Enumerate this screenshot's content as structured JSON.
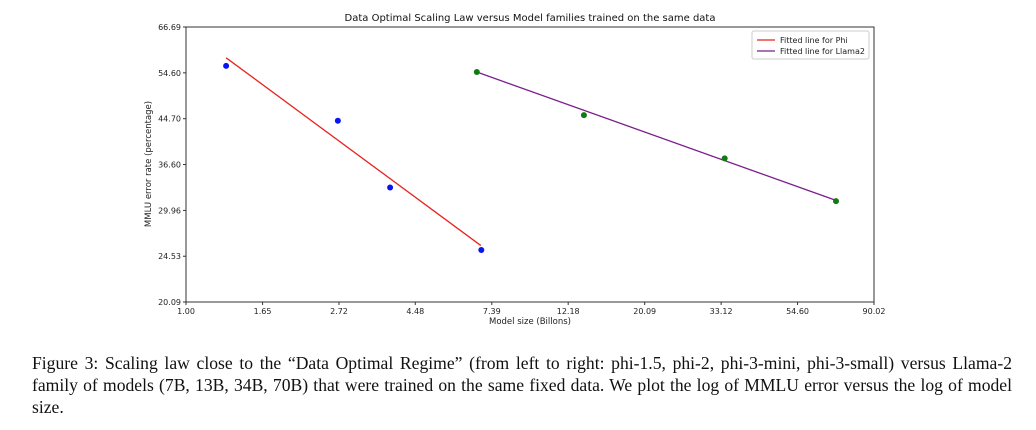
{
  "chart_data": {
    "type": "scatter",
    "title": "Data Optimal Scaling Law versus Model families trained on the same data",
    "xlabel": "Model size (Billons)",
    "ylabel": "MMLU error rate (percentage)",
    "x_scale": "log",
    "y_scale": "log",
    "xlim": [
      1.0,
      90.02
    ],
    "ylim": [
      20.09,
      66.69
    ],
    "x_ticks": [
      "1.00",
      "1.65",
      "2.72",
      "4.48",
      "7.39",
      "12.18",
      "20.09",
      "33.12",
      "54.60",
      "90.02"
    ],
    "y_ticks": [
      "20.09",
      "24.53",
      "29.96",
      "36.60",
      "44.70",
      "54.60",
      "66.69"
    ],
    "grid": false,
    "legend_position": "top-right",
    "series": [
      {
        "name": "Fitted line for Phi",
        "kind": "line",
        "color": "#e8231f",
        "x": [
          1.3,
          6.88
        ],
        "y": [
          58.3,
          25.7
        ]
      },
      {
        "name": "Fitted line for Llama2",
        "kind": "line",
        "color": "#7b1d8c",
        "x": [
          6.7,
          70.2
        ],
        "y": [
          54.8,
          31.3
        ]
      },
      {
        "kind": "scatter",
        "color": "#0a14f0",
        "x": [
          1.3,
          2.7,
          3.8,
          6.9
        ],
        "y": [
          56.3,
          44.3,
          33.1,
          25.2
        ]
      },
      {
        "kind": "scatter",
        "color": "#117a11",
        "x": [
          6.7,
          13.5,
          33.9,
          70.2
        ],
        "y": [
          54.8,
          45.4,
          37.6,
          31.2
        ]
      }
    ]
  },
  "caption": "Figure 3: Scaling law close to the “Data Optimal Regime” (from left to right: phi-1.5, phi-2, phi-3-mini, phi-3-small) versus Llama-2 family of models (7B, 13B, 34B, 70B) that were trained on the same fixed data. We plot the log of MMLU error versus the log of model size."
}
